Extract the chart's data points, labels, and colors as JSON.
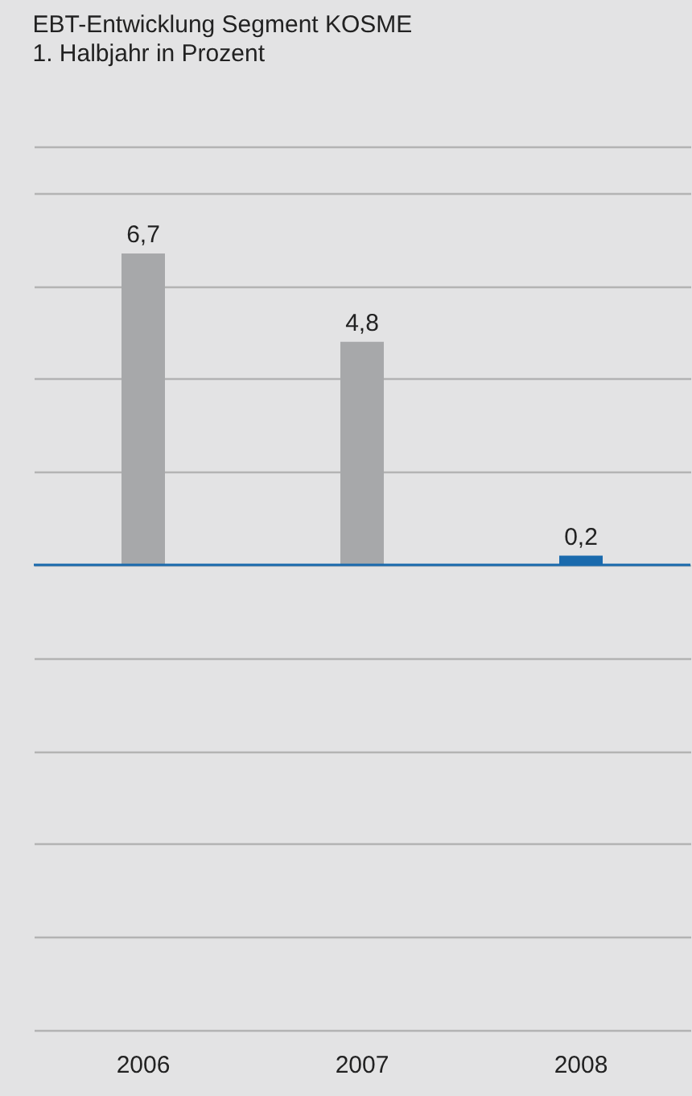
{
  "chart_data": {
    "type": "bar",
    "title": "EBT-Entwicklung Segment KOSME",
    "subtitle": "1. Halbjahr in Prozent",
    "categories": [
      "2006",
      "2007",
      "2008"
    ],
    "values": [
      6.7,
      4.8,
      0.2
    ],
    "colors": [
      "#a7a8aa",
      "#a7a8aa",
      "#1a6aad"
    ],
    "value_labels": [
      "6,7",
      "4,8",
      "0,2"
    ],
    "ylim": [
      -10,
      9
    ],
    "yticks": [
      {
        "value": -10,
        "label": null
      },
      {
        "value": -8,
        "label": null
      },
      {
        "value": -6,
        "label": null
      },
      {
        "value": -4,
        "label": null
      },
      {
        "value": -2,
        "label": null
      },
      {
        "value": 0,
        "label": null
      },
      {
        "value": 2,
        "label": null
      },
      {
        "value": 4,
        "label": null
      },
      {
        "value": 6,
        "label": null
      },
      {
        "value": 8,
        "label": null
      },
      {
        "value": 9,
        "label": null
      }
    ],
    "tick_labels": "x",
    "grid": "y",
    "ref_lines": [
      {
        "axis": "y",
        "value": 0,
        "color": "#1a6aad"
      }
    ]
  }
}
